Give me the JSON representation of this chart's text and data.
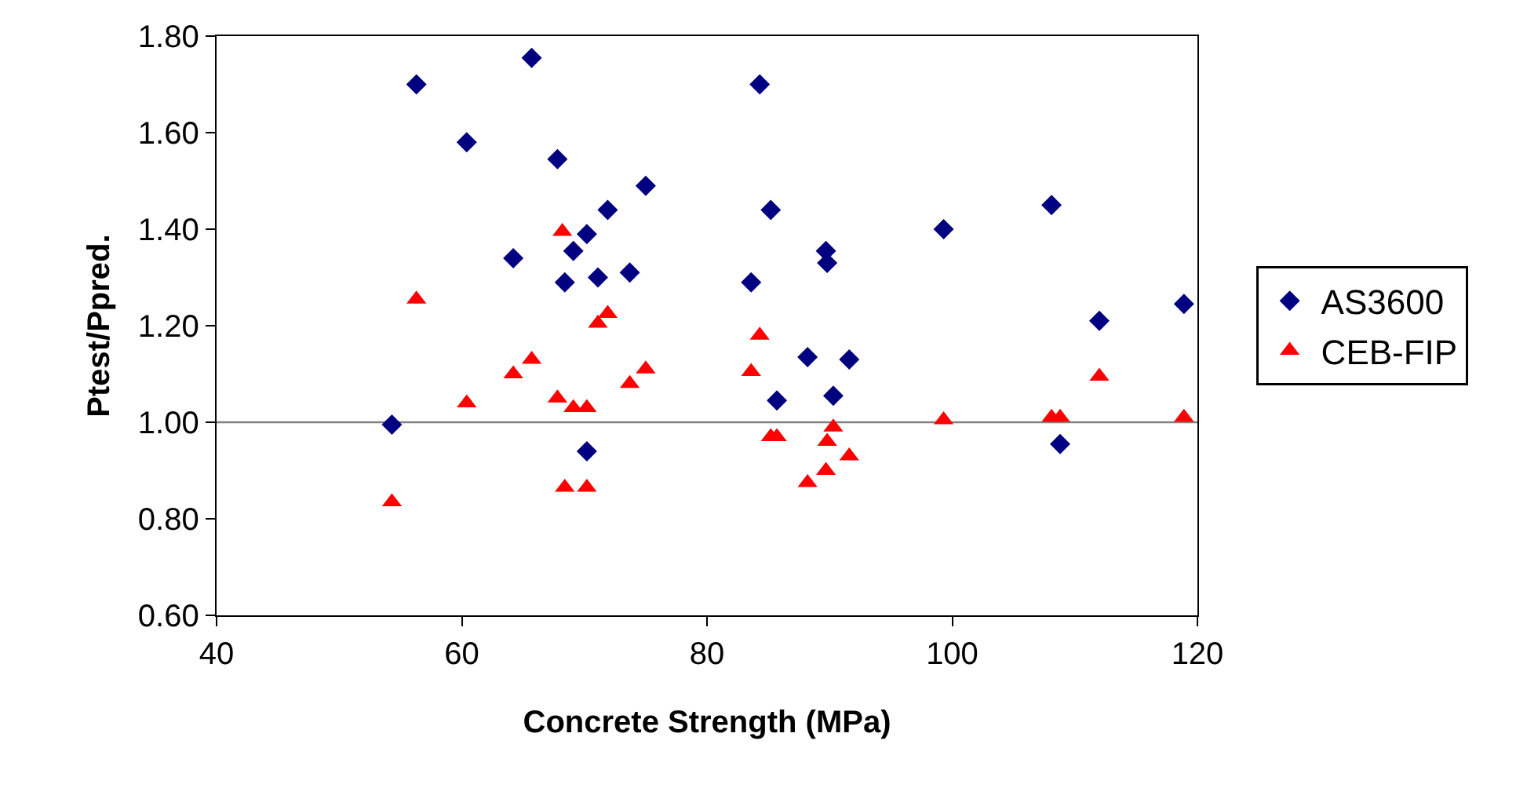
{
  "chart_data": {
    "type": "scatter",
    "xlabel": "Concrete Strength (MPa)",
    "ylabel": "Ptest/Ppred.",
    "x": [
      54.3,
      56.3,
      60.4,
      64.2,
      65.7,
      67.8,
      68.4,
      69.1,
      70.2,
      70.2,
      71.1,
      71.9,
      73.7,
      75.0,
      83.6,
      84.3,
      85.2,
      85.7,
      88.2,
      89.7,
      89.8,
      90.3,
      91.6,
      99.3,
      108.1,
      108.8,
      112.0,
      118.9
    ],
    "series": [
      {
        "name": "AS3600",
        "color": "#000080",
        "marker": "diamond",
        "values": [
          0.995,
          1.7,
          1.58,
          1.34,
          1.755,
          1.545,
          1.29,
          1.355,
          1.39,
          0.94,
          1.3,
          1.44,
          1.31,
          1.49,
          1.29,
          1.7,
          1.44,
          1.045,
          1.135,
          1.355,
          1.33,
          1.055,
          1.13,
          1.4,
          1.45,
          0.955,
          1.21,
          1.245
        ]
      },
      {
        "name": "CEB-FIP",
        "color": "#ff0000",
        "marker": "triangle",
        "x": [
          54.3,
          56.3,
          60.4,
          64.2,
          65.7,
          67.8,
          68.2,
          68.4,
          69.1,
          70.2,
          70.2,
          71.1,
          71.9,
          73.7,
          75.0,
          83.6,
          84.3,
          85.2,
          85.7,
          88.2,
          89.7,
          89.8,
          90.3,
          91.6,
          99.3,
          108.1,
          108.8,
          112.0,
          118.9
        ],
        "values": [
          0.835,
          1.255,
          1.04,
          1.1,
          1.13,
          1.05,
          1.395,
          0.865,
          1.03,
          0.865,
          1.03,
          1.205,
          1.225,
          1.08,
          1.11,
          1.105,
          1.18,
          0.97,
          0.97,
          0.875,
          0.9,
          0.96,
          0.99,
          0.93,
          1.005,
          1.01,
          1.01,
          1.095,
          1.01
        ]
      }
    ],
    "xlim": [
      40,
      120
    ],
    "xticks": [
      40,
      60,
      80,
      100,
      120
    ],
    "ylim": [
      0.6,
      1.8
    ],
    "yticks": [
      {
        "value": 0.6,
        "label": "0.60"
      },
      {
        "value": 0.8,
        "label": "0.80"
      },
      {
        "value": 1.0,
        "label": "1.00"
      },
      {
        "value": 1.2,
        "label": "1.20"
      },
      {
        "value": 1.4,
        "label": "1.40"
      },
      {
        "value": 1.6,
        "label": "1.60"
      },
      {
        "value": 1.8,
        "label": "1.80"
      }
    ],
    "ref_lines": [
      {
        "axis": "y",
        "value": 1.0,
        "color": "#808080"
      }
    ],
    "grid": false,
    "legend": "right"
  }
}
